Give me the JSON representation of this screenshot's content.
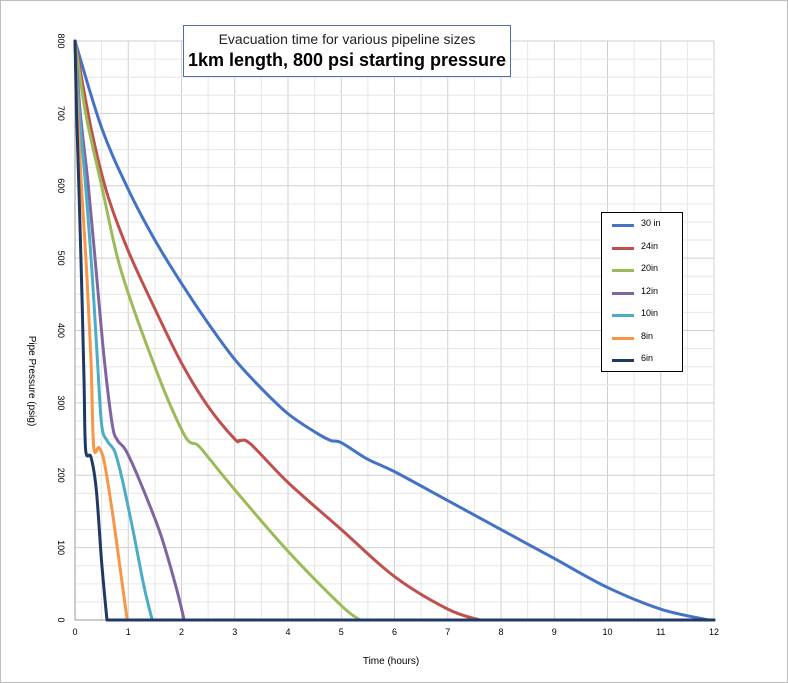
{
  "chart_data": {
    "type": "line",
    "title": "Evacuation time for various pipeline sizes",
    "subtitle": "1km length, 800 psi starting pressure",
    "xlabel": "Time (hours)",
    "ylabel": "Pipe Pressure (psig)",
    "xlim": [
      0,
      12
    ],
    "ylim": [
      0,
      800
    ],
    "xticks": [
      "0",
      "1",
      "2",
      "3",
      "4",
      "5",
      "6",
      "7",
      "8",
      "9",
      "10",
      "11",
      "12"
    ],
    "yticks": [
      "0",
      "100",
      "200",
      "300",
      "400",
      "500",
      "600",
      "700",
      "800"
    ],
    "grid": true,
    "legend_position": "right",
    "series": [
      {
        "name": "30 in",
        "color": "#4472c4",
        "x": [
          0,
          0.5,
          1,
          1.5,
          2,
          2.5,
          3,
          3.5,
          4,
          4.5,
          4.8,
          5,
          5.5,
          6,
          7,
          8,
          9,
          10,
          11,
          11.9
        ],
        "y": [
          800,
          680,
          595,
          525,
          465,
          410,
          360,
          320,
          285,
          260,
          248,
          245,
          222,
          205,
          165,
          125,
          85,
          45,
          15,
          0
        ]
      },
      {
        "name": "24in",
        "color": "#c0504d",
        "x": [
          0,
          0.3,
          0.6,
          1,
          1.5,
          2,
          2.5,
          3,
          3.1,
          3.3,
          4,
          5,
          6,
          7,
          7.6
        ],
        "y": [
          800,
          680,
          590,
          510,
          430,
          355,
          295,
          250,
          248,
          243,
          190,
          125,
          60,
          15,
          0
        ]
      },
      {
        "name": "20in",
        "color": "#9bbb59",
        "x": [
          0,
          0.2,
          0.5,
          0.8,
          1.1,
          1.5,
          1.8,
          2.1,
          2.3,
          2.5,
          3,
          4,
          5,
          5.35
        ],
        "y": [
          800,
          700,
          600,
          500,
          430,
          350,
          295,
          250,
          242,
          225,
          180,
          95,
          20,
          0
        ]
      },
      {
        "name": "12in",
        "color": "#8064a2",
        "x": [
          0,
          0.1,
          0.25,
          0.4,
          0.55,
          0.7,
          0.8,
          0.95,
          1.2,
          1.6,
          1.9,
          2.05
        ],
        "y": [
          800,
          700,
          600,
          480,
          360,
          270,
          248,
          235,
          195,
          120,
          45,
          0
        ]
      },
      {
        "name": "10in",
        "color": "#4bacc6",
        "x": [
          0,
          0.08,
          0.2,
          0.32,
          0.42,
          0.5,
          0.6,
          0.75,
          0.9,
          1.1,
          1.3,
          1.45
        ],
        "y": [
          800,
          700,
          600,
          480,
          360,
          270,
          248,
          232,
          190,
          120,
          45,
          0
        ]
      },
      {
        "name": "8in",
        "color": "#f79646",
        "x": [
          0,
          0.05,
          0.12,
          0.22,
          0.3,
          0.35,
          0.45,
          0.55,
          0.7,
          0.85,
          0.98
        ],
        "y": [
          800,
          700,
          600,
          480,
          360,
          240,
          238,
          218,
          150,
          70,
          0
        ]
      },
      {
        "name": "6in",
        "color": "#1f3864",
        "x": [
          0,
          0.03,
          0.08,
          0.13,
          0.17,
          0.2,
          0.3,
          0.4,
          0.5,
          0.6
        ],
        "y": [
          800,
          700,
          580,
          450,
          330,
          235,
          225,
          180,
          80,
          0
        ]
      }
    ]
  }
}
